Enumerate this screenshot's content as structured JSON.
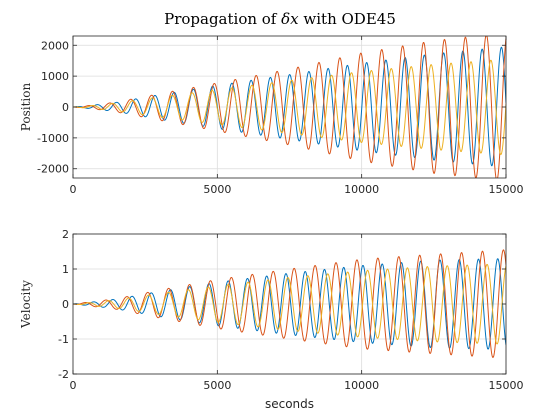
{
  "chart_data": [
    {
      "type": "line",
      "title": "Propagation of δx with ODE45",
      "title_parts": {
        "prefix": "Propagation of ",
        "math": "δx",
        "suffix": " with ODE45"
      },
      "xlabel": "",
      "ylabel": "Position",
      "xlim": [
        0,
        15000
      ],
      "ylim": [
        -2300,
        2300
      ],
      "xticks": [
        0,
        5000,
        10000,
        15000
      ],
      "xtick_labels": [
        "0",
        "5000",
        "10000",
        "15000"
      ],
      "yticks": [
        2000,
        1000,
        0,
        -1000,
        -2000
      ],
      "ytick_labels": [
        "2000",
        "1000",
        "0",
        "-1000",
        "-2000"
      ],
      "grid": true,
      "legend": "none",
      "series": [
        {
          "color": "#0072BD",
          "period": 667,
          "phase": 0,
          "env": [
            [
              0,
              0
            ],
            [
              700,
              60
            ],
            [
              1500,
              150
            ],
            [
              3000,
              400
            ],
            [
              5000,
              700
            ],
            [
              7500,
              1050
            ],
            [
              10000,
              1420
            ],
            [
              12500,
              1720
            ],
            [
              15000,
              1950
            ]
          ]
        },
        {
          "color": "#D95319",
          "period": 725,
          "phase": 3.14,
          "env": [
            [
              0,
              0
            ],
            [
              700,
              60
            ],
            [
              1500,
              160
            ],
            [
              3000,
              430
            ],
            [
              5000,
              780
            ],
            [
              7500,
              1230
            ],
            [
              10000,
              1750
            ],
            [
              12500,
              2150
            ],
            [
              15000,
              2400
            ]
          ]
        },
        {
          "color": "#EDB120",
          "period": 690,
          "phase": 1.7,
          "env": [
            [
              0,
              0
            ],
            [
              700,
              50
            ],
            [
              1500,
              130
            ],
            [
              3000,
              330
            ],
            [
              5000,
              560
            ],
            [
              7500,
              860
            ],
            [
              10000,
              1150
            ],
            [
              12500,
              1380
            ],
            [
              15000,
              1550
            ]
          ]
        }
      ]
    },
    {
      "type": "line",
      "title": "",
      "xlabel": "seconds",
      "ylabel": "Velocity",
      "xlim": [
        0,
        15000
      ],
      "ylim": [
        -2,
        2
      ],
      "xticks": [
        0,
        5000,
        10000,
        15000
      ],
      "xtick_labels": [
        "0",
        "5000",
        "10000",
        "15000"
      ],
      "yticks": [
        2,
        1,
        0,
        -1,
        -2
      ],
      "ytick_labels": [
        "2",
        "1",
        "0",
        "-1",
        "-2"
      ],
      "grid": true,
      "legend": "none",
      "series": [
        {
          "color": "#0072BD",
          "period": 667,
          "phase": 1.2,
          "env": [
            [
              0,
              0
            ],
            [
              700,
              0.06
            ],
            [
              1500,
              0.14
            ],
            [
              3000,
              0.36
            ],
            [
              5000,
              0.62
            ],
            [
              7500,
              0.88
            ],
            [
              10000,
              1.1
            ],
            [
              12500,
              1.25
            ],
            [
              15000,
              1.3
            ]
          ]
        },
        {
          "color": "#D95319",
          "period": 725,
          "phase": 4.3,
          "env": [
            [
              0,
              0
            ],
            [
              700,
              0.07
            ],
            [
              1500,
              0.15
            ],
            [
              3000,
              0.4
            ],
            [
              5000,
              0.7
            ],
            [
              7500,
              1.0
            ],
            [
              10000,
              1.28
            ],
            [
              12500,
              1.42
            ],
            [
              15000,
              1.55
            ]
          ]
        },
        {
          "color": "#EDB120",
          "period": 690,
          "phase": 2.9,
          "env": [
            [
              0,
              0
            ],
            [
              700,
              0.05
            ],
            [
              1500,
              0.12
            ],
            [
              3000,
              0.3
            ],
            [
              5000,
              0.52
            ],
            [
              7500,
              0.76
            ],
            [
              10000,
              0.95
            ],
            [
              12500,
              1.08
            ],
            [
              15000,
              1.15
            ]
          ]
        }
      ]
    }
  ]
}
